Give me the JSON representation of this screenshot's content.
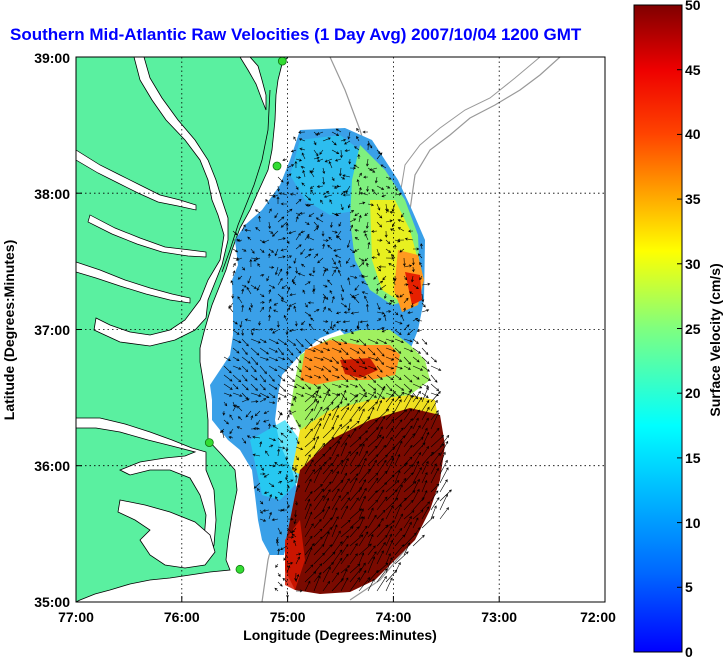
{
  "title": "Southern Mid-Atlantic Raw Velocities (1 Day Avg) 2007/10/04 1200 GMT",
  "x_axis": {
    "label": "Longitude (Degrees:Minutes)",
    "ticks": [
      "77:00",
      "76:00",
      "75:00",
      "74:00",
      "73:00",
      "72:00"
    ]
  },
  "y_axis": {
    "label": "Latitude (Degrees:Minutes)",
    "ticks": [
      "39:00",
      "38:00",
      "37:00",
      "36:00",
      "35:00"
    ]
  },
  "colorbar": {
    "label": "Surface Velocity (cm/s)",
    "ticks": [
      "50",
      "45",
      "40",
      "35",
      "30",
      "25",
      "20",
      "15",
      "10",
      "5",
      "0"
    ],
    "range": [
      0,
      50
    ]
  },
  "colors": {
    "land": "#5af0a0",
    "land_border": "#000000",
    "grid": "#000000",
    "bathymetry": "#999999",
    "station": "#33dd33",
    "title": "#0000ff"
  },
  "map_extent": {
    "lon": [
      -77,
      -72
    ],
    "lat": [
      35,
      39
    ]
  },
  "stations": [
    {
      "lon": -75.05,
      "lat": 38.97
    },
    {
      "lon": -75.1,
      "lat": 38.2
    },
    {
      "lon": -75.74,
      "lat": 36.17
    },
    {
      "lon": -75.45,
      "lat": 35.24
    }
  ],
  "velocity_regions": [
    {
      "zone": "north-central",
      "speed_cm_s": 8
    },
    {
      "zone": "northeast",
      "speed_cm_s": 14
    },
    {
      "zone": "east-37N",
      "speed_cm_s": 34
    },
    {
      "zone": "central-36.7N",
      "speed_cm_s": 38
    },
    {
      "zone": "southwest-shelf",
      "speed_cm_s": 10
    },
    {
      "zone": "gulf-stream-south",
      "speed_cm_s": 50
    }
  ]
}
